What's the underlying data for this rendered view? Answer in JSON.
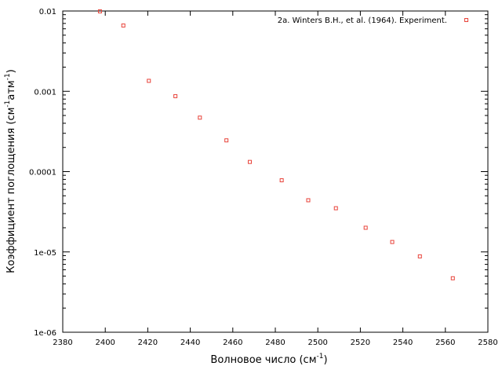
{
  "chart_data": {
    "type": "scatter",
    "xlabel_main": "Волновое число (см",
    "xlabel_sup": "-1",
    "xlabel_end": ")",
    "ylabel_main": "Коэффициент поглощения (см",
    "ylabel_sup1": "-1",
    "ylabel_mid": "атм",
    "ylabel_sup2": "-1",
    "ylabel_end": ")",
    "xlim": [
      2380,
      2580
    ],
    "ylim": [
      1e-06,
      0.01
    ],
    "yscale": "log",
    "x_ticks": [
      2380,
      2400,
      2420,
      2440,
      2460,
      2480,
      2500,
      2520,
      2540,
      2560,
      2580
    ],
    "y_ticks": [
      {
        "value": 1e-06,
        "label": "1e-06"
      },
      {
        "value": 1e-05,
        "label": "1e-05"
      },
      {
        "value": 0.0001,
        "label": "0.0001"
      },
      {
        "value": 0.001,
        "label": "0.001"
      },
      {
        "value": 0.01,
        "label": "0.01"
      }
    ],
    "grid": false,
    "legend_position": "top-right",
    "series": [
      {
        "name": "2a. Winters B.H., et al. (1964). Experiment.",
        "color": "#e8433a",
        "marker": "square-open",
        "x": [
          2397.5,
          2408.5,
          2420.5,
          2433,
          2444.5,
          2457,
          2468,
          2483,
          2495.5,
          2508.5,
          2522.5,
          2535,
          2548,
          2563.5
        ],
        "y": [
          0.0099,
          0.0066,
          0.00135,
          0.00087,
          0.00047,
          0.000245,
          0.000132,
          7.8e-05,
          4.4e-05,
          3.5e-05,
          2e-05,
          1.33e-05,
          8.8e-06,
          4.7e-06
        ]
      }
    ]
  }
}
